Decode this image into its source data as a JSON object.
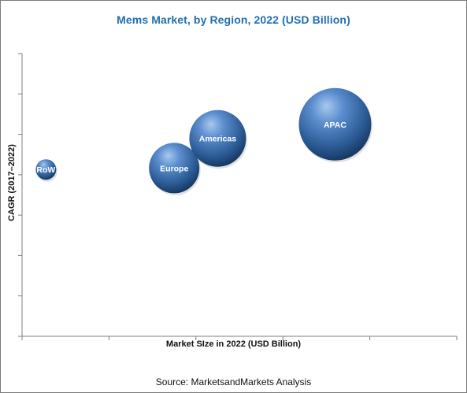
{
  "chart_data": {
    "type": "scatter",
    "title": "Mems Market, by Region, 2022 (USD Billion)",
    "xlabel": "Market SIze in 2022 (USD Billion)",
    "ylabel": "CAGR (2017–2022)",
    "xlim": [
      0,
      100
    ],
    "ylim": [
      0,
      100
    ],
    "grid": false,
    "axis_color": "#7f7f7f",
    "bubble_color": "#2f5f96",
    "series": [
      {
        "name": "RoW",
        "x": 5.5,
        "y": 59,
        "size": 13
      },
      {
        "name": "Europe",
        "x": 35,
        "y": 59.5,
        "size": 32
      },
      {
        "name": "Americas",
        "x": 45,
        "y": 70,
        "size": 36
      },
      {
        "name": "APAC",
        "x": 72,
        "y": 75,
        "size": 46
      }
    ],
    "source": "Source: MarketsandMarkets Analysis"
  }
}
